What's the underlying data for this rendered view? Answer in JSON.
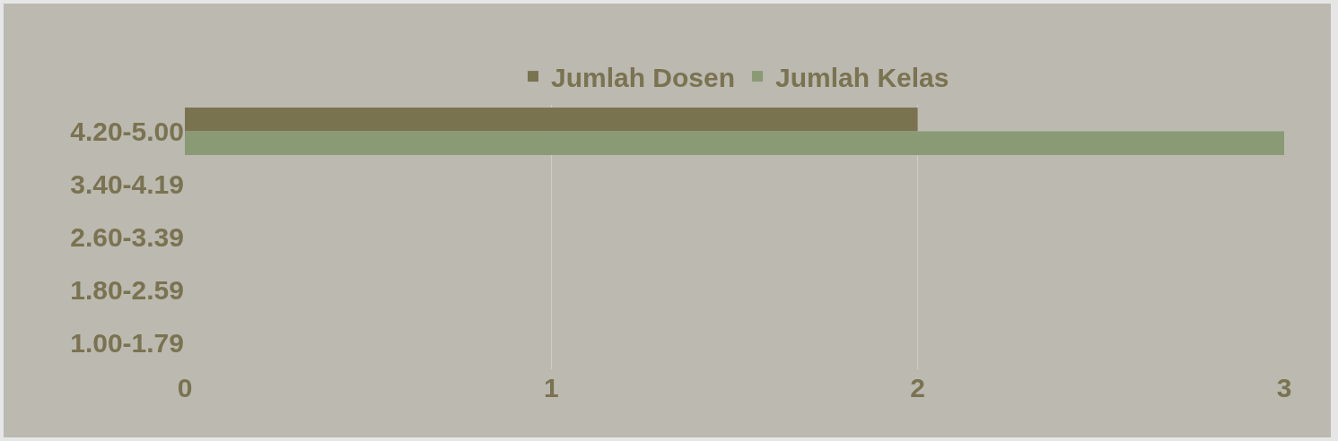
{
  "chart_data": {
    "type": "bar",
    "orientation": "horizontal",
    "categories": [
      "4.20-5.00",
      "3.40-4.19",
      "2.60-3.39",
      "1.80-2.59",
      "1.00-1.79"
    ],
    "series": [
      {
        "name": "Jumlah Dosen",
        "color": "#7a7350",
        "values": [
          2,
          0,
          0,
          0,
          0
        ]
      },
      {
        "name": "Jumlah Kelas",
        "color": "#8a9a74",
        "values": [
          3,
          0,
          0,
          0,
          0
        ]
      }
    ],
    "xlim": [
      0,
      3
    ],
    "xticks": [
      0,
      1,
      2,
      3
    ],
    "grid": "x",
    "legend": "top"
  }
}
